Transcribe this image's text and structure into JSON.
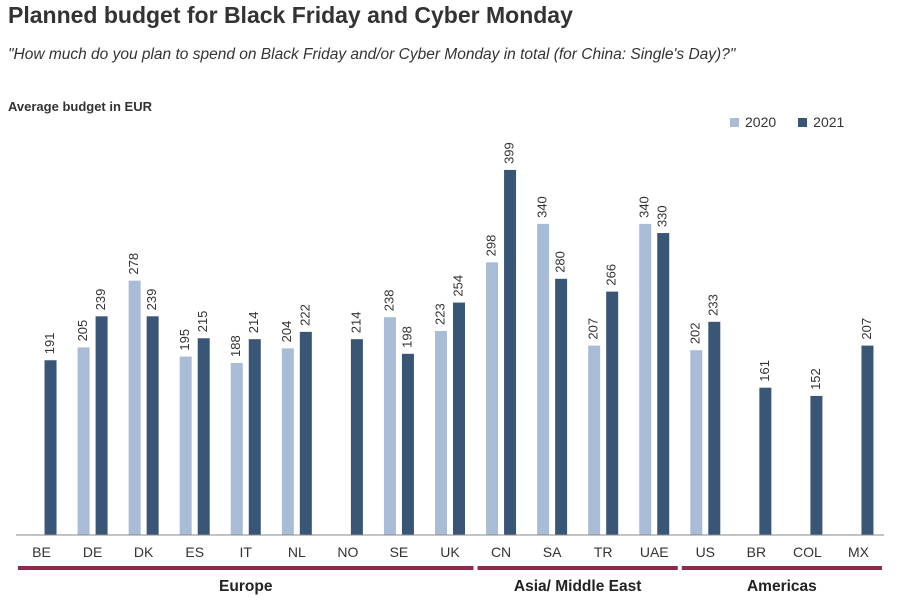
{
  "title": "Planned budget for Black Friday and Cyber Monday",
  "subtitle": "\"How much do you plan to spend on Black Friday and/or Cyber Monday in total (for China: Single's Day)?\"",
  "colors": {
    "s2020": "#a9bcd6",
    "s2021": "#3a5677",
    "group_line": "#8e2a4f"
  },
  "chart_data": {
    "type": "bar",
    "title": "Planned budget for Black Friday and Cyber Monday",
    "ylabel": "Average budget in EUR",
    "xlabel": "",
    "ylim": [
      0,
      440
    ],
    "legend_position": "top-right",
    "categories": [
      "BE",
      "DE",
      "DK",
      "ES",
      "IT",
      "NL",
      "NO",
      "SE",
      "UK",
      "CN",
      "SA",
      "TR",
      "UAE",
      "US",
      "BR",
      "COL",
      "MX"
    ],
    "series": [
      {
        "name": "2020",
        "values": [
          null,
          205,
          278,
          195,
          188,
          204,
          null,
          238,
          223,
          298,
          340,
          207,
          340,
          202,
          null,
          null,
          null
        ]
      },
      {
        "name": "2021",
        "values": [
          191,
          239,
          239,
          215,
          214,
          222,
          214,
          198,
          254,
          399,
          280,
          266,
          330,
          233,
          161,
          152,
          207
        ]
      }
    ],
    "groups": [
      {
        "label": "Europe",
        "categories": [
          "BE",
          "DE",
          "DK",
          "ES",
          "IT",
          "NL",
          "NO",
          "SE",
          "UK"
        ]
      },
      {
        "label": "Asia/ Middle East",
        "categories": [
          "CN",
          "SA",
          "TR",
          "UAE"
        ]
      },
      {
        "label": "Americas",
        "categories": [
          "US",
          "BR",
          "COL",
          "MX"
        ]
      }
    ]
  }
}
